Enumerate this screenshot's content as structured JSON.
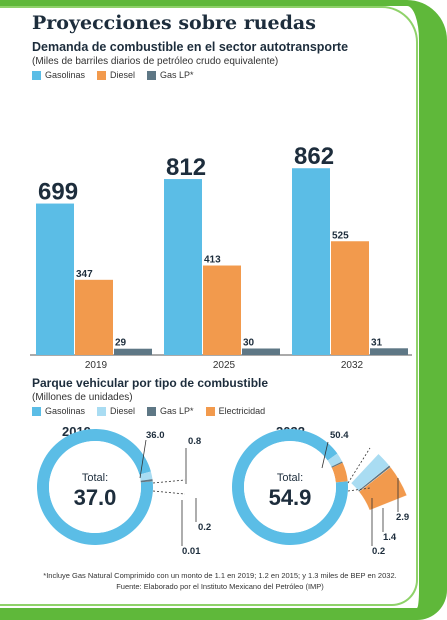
{
  "title": "Proyecciones sobre ruedas",
  "section1": {
    "subtitle": "Demanda de combustible en el sector autotransporte",
    "units": "(Miles de barriles diarios de petróleo crudo equivalente)"
  },
  "section2": {
    "subtitle": "Parque vehicular por tipo de combustible",
    "units": "(Millones de unidades)"
  },
  "legend1": [
    {
      "label": "Gasolinas",
      "color": "#5bbde6"
    },
    {
      "label": "Diesel",
      "color": "#f29a4d"
    },
    {
      "label": "Gas LP*",
      "color": "#5e7785"
    }
  ],
  "legend2": [
    {
      "label": "Gasolinas",
      "color": "#5bbde6"
    },
    {
      "label": "Diesel",
      "color": "#a9dcf2"
    },
    {
      "label": "Gas LP*",
      "color": "#5e7785"
    },
    {
      "label": "Electricidad",
      "color": "#f29a4d"
    }
  ],
  "footnote": {
    "line1": "*Incluye Gas Natural Comprimido con un monto de 1.1 en 2019; 1.2 en 2015; y 1.3 miles de BEP en 2032.",
    "line2": "Fuente: Elaborado por el Instituto Mexicano del Petróleo (IMP)"
  },
  "chart_data": [
    {
      "type": "bar",
      "title": "Demanda de combustible en el sector autotransporte",
      "ylabel": "Miles de barriles diarios de petróleo crudo equivalente",
      "categories": [
        "2019",
        "2025",
        "2032"
      ],
      "series": [
        {
          "name": "Gasolinas",
          "values": [
            699,
            812,
            862
          ]
        },
        {
          "name": "Diesel",
          "values": [
            347,
            413,
            525
          ]
        },
        {
          "name": "Gas LP*",
          "values": [
            29,
            30,
            31
          ]
        }
      ],
      "ylim": [
        0,
        900
      ],
      "grid": false
    },
    {
      "type": "pie",
      "title": "2019",
      "total_label": "Total:",
      "total": "37.0",
      "slices": [
        {
          "name": "Gasolinas",
          "value": 36.0,
          "label": "36.0"
        },
        {
          "name": "Diesel",
          "value": 0.8,
          "label": "0.8"
        },
        {
          "name": "Gas LP*",
          "value": 0.2,
          "label": "0.2"
        },
        {
          "name": "Electricidad",
          "value": 0.01,
          "label": "0.01"
        }
      ]
    },
    {
      "type": "pie",
      "title": "2032",
      "total_label": "Total:",
      "total": "54.9",
      "slices": [
        {
          "name": "Gasolinas",
          "value": 50.4,
          "label": "50.4"
        },
        {
          "name": "Diesel",
          "value": 1.4,
          "label": "1.4"
        },
        {
          "name": "Gas LP*",
          "value": 0.2,
          "label": "0.2"
        },
        {
          "name": "Electricidad",
          "value": 2.9,
          "label": "2.9"
        }
      ]
    }
  ]
}
